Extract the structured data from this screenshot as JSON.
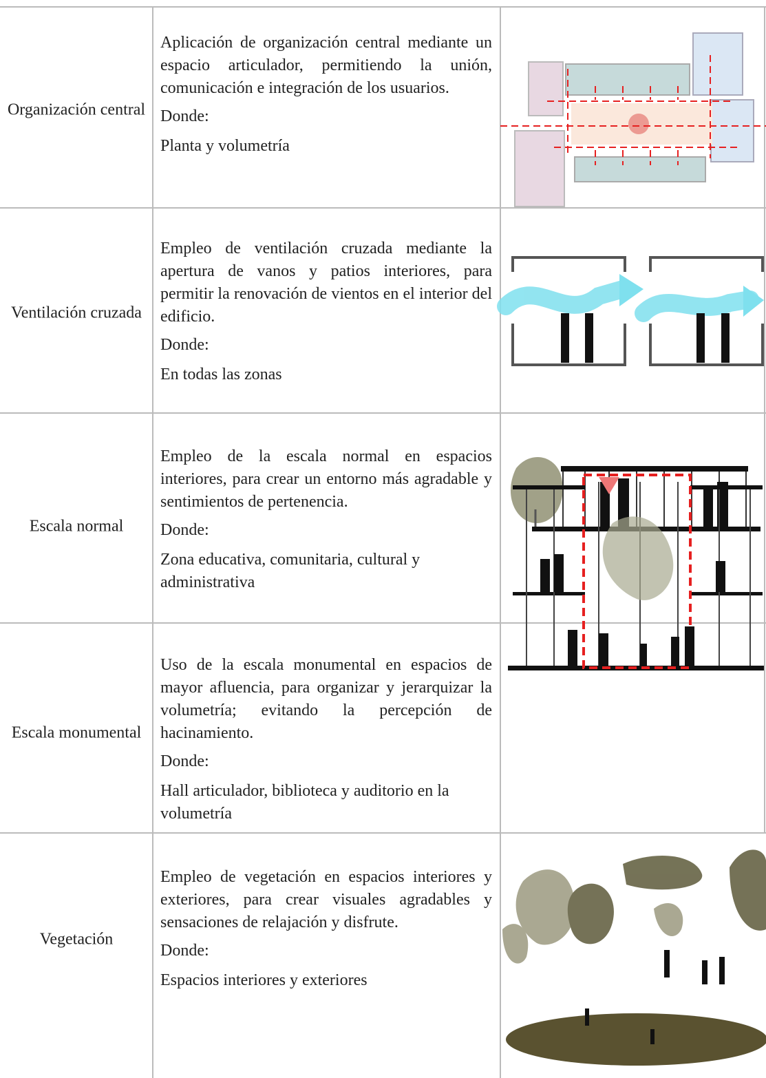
{
  "table": {
    "rows": [
      {
        "label": "Organización central",
        "description": "Aplicación de organización central mediante un espacio articulador, permitiendo la unión, comunicación e integración de los usuarios.",
        "where_label": "Donde:",
        "where": "Planta y volumetría"
      },
      {
        "label": "Ventilación cruzada",
        "description": "Empleo de ventilación cruzada mediante la apertura de vanos y patios interiores, para permitir la renovación de vientos en el interior del edificio.",
        "where_label": "Donde:",
        "where": "En todas las zonas"
      },
      {
        "label": "Escala normal",
        "description": "Empleo de la escala normal en espacios interiores, para crear un entorno más agradable y sentimientos de pertenencia.",
        "where_label": "Donde:",
        "where": "Zona educativa, comunitaria, cultural y administrativa"
      },
      {
        "label": "Escala monumental",
        "description": "Uso de la escala monumental en espacios de mayor afluencia, para organizar y jerarquizar la volumetría; evitando la percepción de hacinamiento.",
        "where_label": "Donde:",
        "where": "Hall articulador, biblioteca y auditorio en la volumetría"
      },
      {
        "label": "Vegetación",
        "description": "Empleo de vegetación en espacios interiores y exteriores, para crear visuales agradables y sensaciones de relajación y disfrute.",
        "where_label": "Donde:",
        "where": "Espacios interiores y exteriores"
      }
    ]
  }
}
